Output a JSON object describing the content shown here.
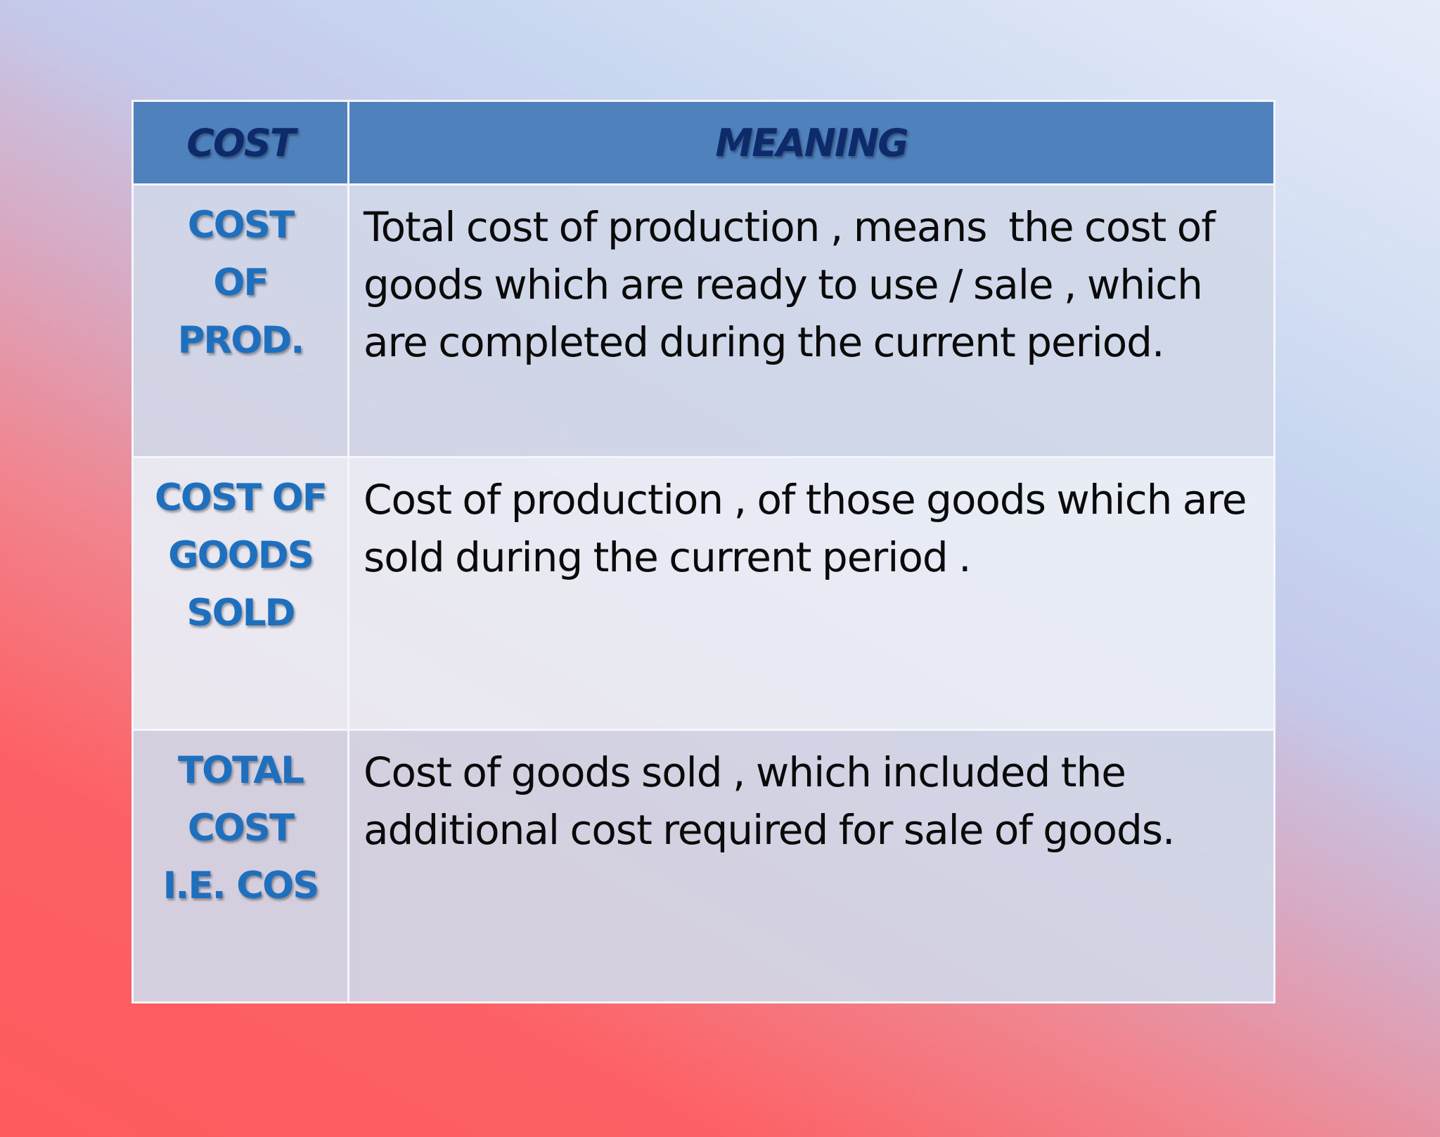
{
  "table": {
    "headers": {
      "cost": "COST",
      "meaning": "MEANING"
    },
    "rows": [
      {
        "cost_lines": [
          "COST",
          "OF",
          "PROD."
        ],
        "meaning": "Total cost of production , means  the cost of goods which are ready to use / sale , which are completed during the current period."
      },
      {
        "cost_lines": [
          "COST OF",
          "GOODS",
          "SOLD"
        ],
        "meaning": "Cost of production , of those goods which are sold during the current period ."
      },
      {
        "cost_lines": [
          "TOTAL",
          "COST",
          "I.E. COS"
        ],
        "meaning": "Cost of goods sold , which included the additional cost required for sale of goods."
      }
    ]
  },
  "colors": {
    "header_bg": "#4f81bd",
    "header_text": "#0d2a6b",
    "cost_text": "#1f6fbf",
    "meaning_text": "#0a0a0a",
    "background_left": "#ff5c5f",
    "background_right": "#e6ebf8"
  }
}
